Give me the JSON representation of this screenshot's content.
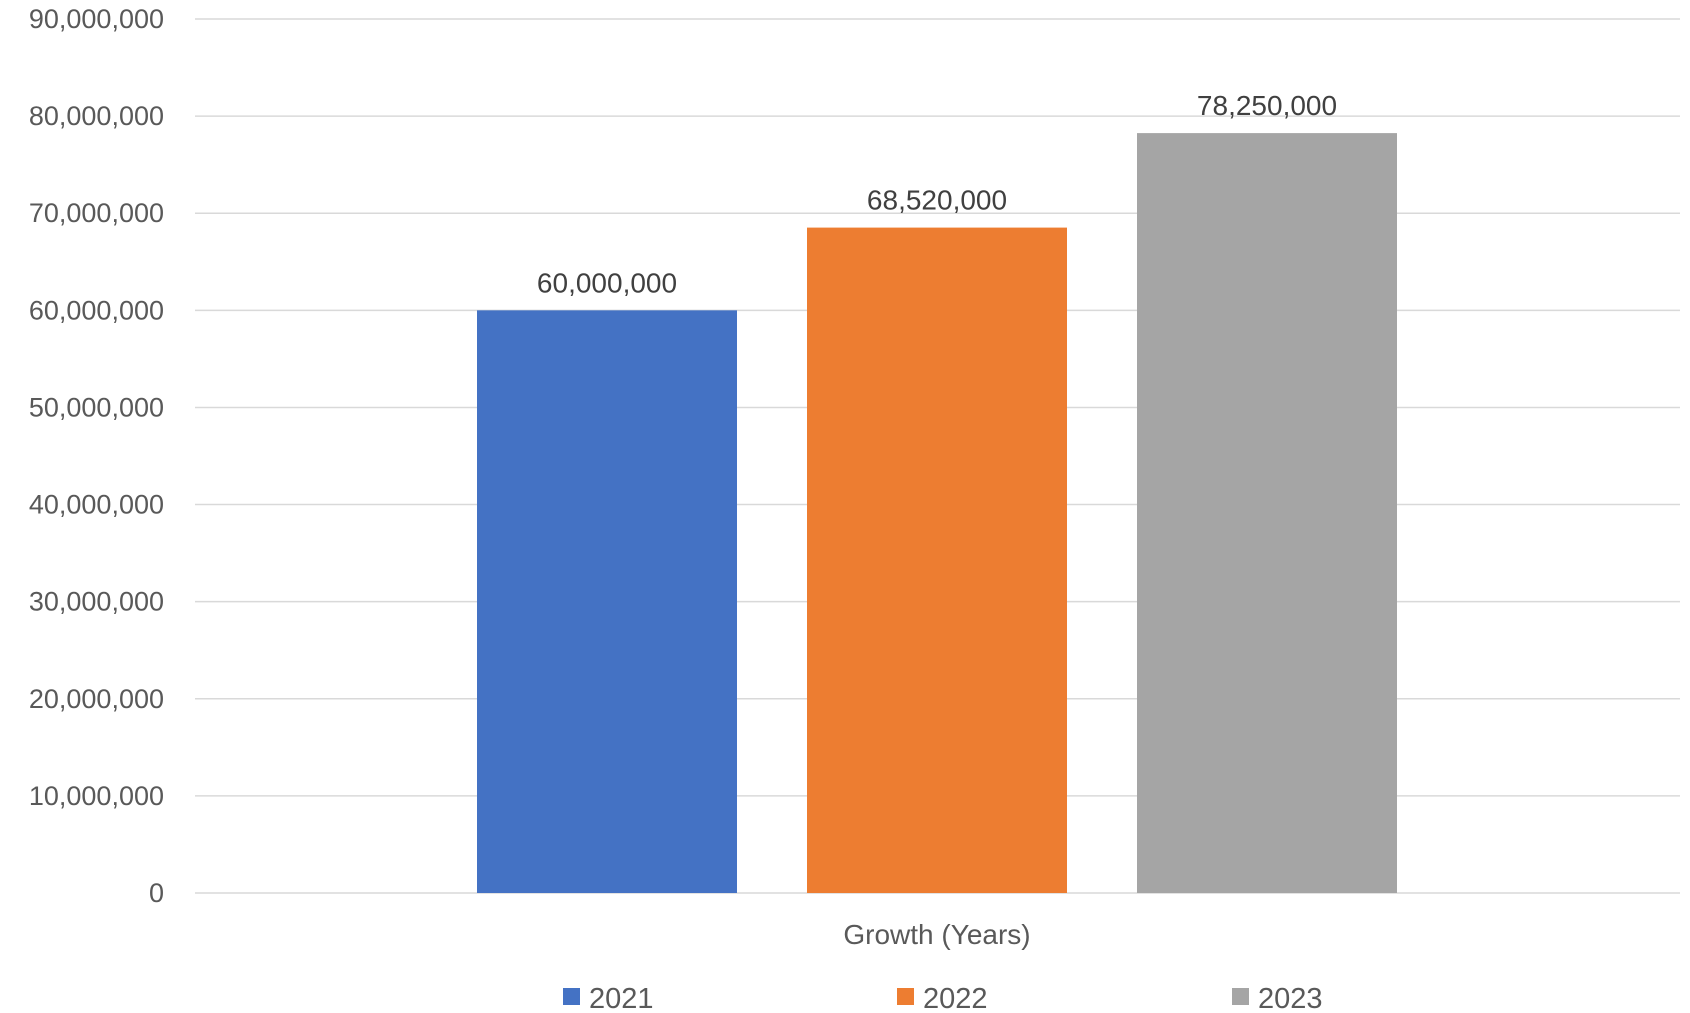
{
  "chart_data": {
    "type": "bar",
    "title": "",
    "categories": [
      "Growth (Years)"
    ],
    "xlabel": "Growth (Years)",
    "ylabel": "",
    "ylim": [
      0,
      90000000
    ],
    "ytick_step": 10000000,
    "yticks": [
      "0",
      "10,000,000",
      "20,000,000",
      "30,000,000",
      "40,000,000",
      "50,000,000",
      "60,000,000",
      "70,000,000",
      "80,000,000",
      "90,000,000"
    ],
    "grid": true,
    "legend_position": "bottom",
    "series": [
      {
        "name": "2021",
        "values": [
          60000000
        ],
        "label": "60,000,000",
        "color": "#4472C4"
      },
      {
        "name": "2022",
        "values": [
          68520000
        ],
        "label": "68,520,000",
        "color": "#ED7D31"
      },
      {
        "name": "2023",
        "values": [
          78250000
        ],
        "label": "78,250,000",
        "color": "#A5A5A5"
      }
    ]
  }
}
